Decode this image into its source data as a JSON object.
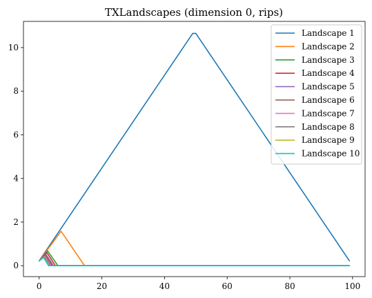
{
  "chart_data": {
    "type": "line",
    "title": "TXLandscapes (dimension 0, rips)",
    "xlabel": "",
    "ylabel": "",
    "xlim": [
      -5,
      104
    ],
    "ylim": [
      -0.5,
      11.2
    ],
    "xticks": [
      0,
      20,
      40,
      60,
      80,
      100
    ],
    "yticks": [
      0,
      2,
      4,
      6,
      8,
      10
    ],
    "xtick_labels": [
      "0",
      "20",
      "40",
      "60",
      "80",
      "100"
    ],
    "ytick_labels": [
      "0",
      "2",
      "4",
      "6",
      "8",
      "10"
    ],
    "grid": false,
    "legend_position": "top-right",
    "series": [
      {
        "name": "Landscape 1",
        "color": "#1f77b4",
        "x": [
          0,
          49,
          50,
          99
        ],
        "y": [
          0.22,
          10.65,
          10.65,
          0.22
        ]
      },
      {
        "name": "Landscape 2",
        "color": "#ff7f0e",
        "x": [
          0,
          7,
          14.5,
          99
        ],
        "y": [
          0.22,
          1.58,
          0,
          0
        ]
      },
      {
        "name": "Landscape 3",
        "color": "#2ca02c",
        "x": [
          0,
          2.7,
          6,
          99
        ],
        "y": [
          0.22,
          0.68,
          0,
          0
        ]
      },
      {
        "name": "Landscape 4",
        "color": "#d62728",
        "x": [
          0,
          2.5,
          5.2,
          99
        ],
        "y": [
          0.22,
          0.6,
          0,
          0
        ]
      },
      {
        "name": "Landscape 5",
        "color": "#9467bd",
        "x": [
          0,
          2.2,
          4.6,
          99
        ],
        "y": [
          0.22,
          0.52,
          0,
          0
        ]
      },
      {
        "name": "Landscape 6",
        "color": "#8c564b",
        "x": [
          0,
          2,
          4.2,
          99
        ],
        "y": [
          0.22,
          0.47,
          0,
          0
        ]
      },
      {
        "name": "Landscape 7",
        "color": "#e377c2",
        "x": [
          0,
          1.8,
          3.8,
          99
        ],
        "y": [
          0.22,
          0.44,
          0,
          0
        ]
      },
      {
        "name": "Landscape 8",
        "color": "#7f7f7f",
        "x": [
          0,
          1.6,
          3.5,
          99
        ],
        "y": [
          0.22,
          0.41,
          0,
          0
        ]
      },
      {
        "name": "Landscape 9",
        "color": "#bcbd22",
        "x": [
          0,
          1.5,
          3.2,
          99
        ],
        "y": [
          0.22,
          0.39,
          0,
          0
        ]
      },
      {
        "name": "Landscape 10",
        "color": "#17becf",
        "x": [
          0,
          1.4,
          3,
          99
        ],
        "y": [
          0.22,
          0.38,
          0,
          0
        ]
      }
    ]
  }
}
